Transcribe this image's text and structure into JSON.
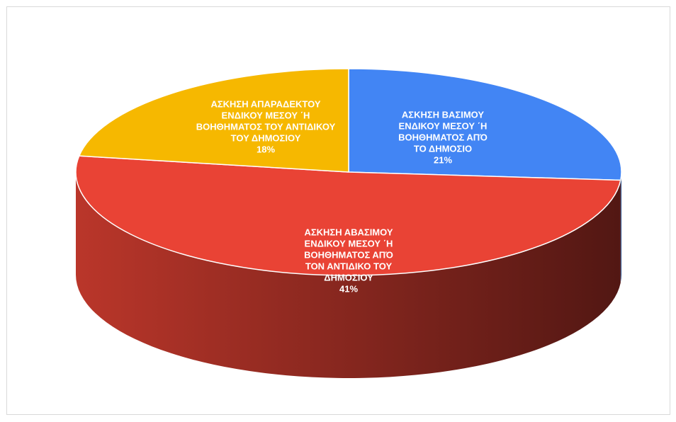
{
  "chart_data": {
    "type": "pie3d",
    "categories": [
      [
        "ΑΣΚΗΣΗ ΒΑΣΙΜΟΥ",
        "ΕΝΔΙΚΟΥ ΜΕΣΟΥ ΄Η",
        "ΒΟΗΘΗΜΑΤΟΣ ΑΠΌ",
        "ΤΟ ΔΗΜΟΣΙΟ"
      ],
      [
        "ΑΣΚΗΣΗ ΑΒΑΣΙΜΟΥ",
        "ΕΝΔΙΚΟΥ ΜΕΣΟΥ ΄Η",
        "ΒΟΗΘΗΜΑΤΟΣ ΑΠΌ",
        "ΤΟΝ ΑΝΤΙΔΙΚΟ ΤΟΥ",
        "ΔΗΜΟΣΙΟΥ"
      ],
      [
        "ΑΣΚΗΣΗ ΑΠΑΡΑΔΕΚΤΟΥ",
        "ΕΝΔΙΚΟΥ ΜΕΣΟΥ ΄Η",
        "ΒΟΗΘΗΜΑΤΟΣ ΤΟΥ ΑΝΤΙΔΙΚΟΥ",
        "ΤΟΥ ΔΗΜΟΣΙΟΥ"
      ]
    ],
    "values": [
      21,
      41,
      18
    ],
    "value_labels": [
      "21%",
      "41%",
      "18%"
    ],
    "colors": [
      "#4285f4",
      "#e94335",
      "#f6b800"
    ]
  }
}
